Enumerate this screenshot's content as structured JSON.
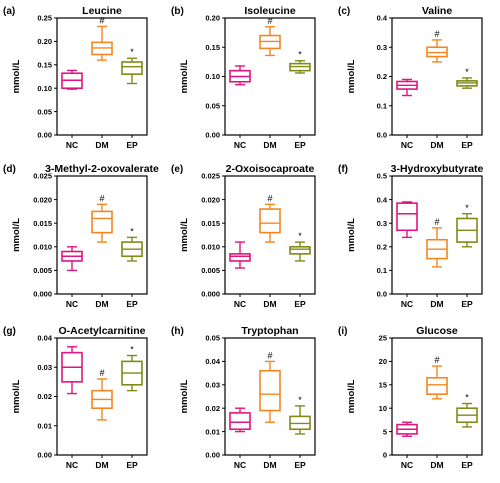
{
  "colors": {
    "NC": "#E0157E",
    "DM": "#F5861F",
    "EP": "#7E8B18"
  },
  "chart_data": [
    {
      "type": "boxplot",
      "panel_label": "(a)",
      "title": "Leucine",
      "ylabel": "mmol/L",
      "ylim": [
        0,
        0.25
      ],
      "yticks": [
        "0.00",
        "0.05",
        "0.10",
        "0.15",
        "0.20",
        "0.25"
      ],
      "categories": [
        "NC",
        "DM",
        "EP"
      ],
      "boxes": [
        {
          "min": 0.098,
          "q1": 0.1,
          "median": 0.117,
          "q3": 0.132,
          "max": 0.138,
          "mark": ""
        },
        {
          "min": 0.16,
          "q1": 0.172,
          "median": 0.186,
          "q3": 0.198,
          "max": 0.232,
          "mark": "#"
        },
        {
          "min": 0.11,
          "q1": 0.13,
          "median": 0.146,
          "q3": 0.156,
          "max": 0.164,
          "mark": "*"
        }
      ]
    },
    {
      "type": "boxplot",
      "panel_label": "(b)",
      "title": "Isoleucine",
      "ylabel": "mmol/L",
      "ylim": [
        0,
        0.2
      ],
      "yticks": [
        "0.00",
        "0.05",
        "0.10",
        "0.15",
        "0.20"
      ],
      "categories": [
        "NC",
        "DM",
        "EP"
      ],
      "boxes": [
        {
          "min": 0.086,
          "q1": 0.091,
          "median": 0.1,
          "q3": 0.11,
          "max": 0.118,
          "mark": ""
        },
        {
          "min": 0.136,
          "q1": 0.148,
          "median": 0.16,
          "q3": 0.17,
          "max": 0.185,
          "mark": "#"
        },
        {
          "min": 0.106,
          "q1": 0.11,
          "median": 0.117,
          "q3": 0.122,
          "max": 0.127,
          "mark": "*"
        }
      ]
    },
    {
      "type": "boxplot",
      "panel_label": "(c)",
      "title": "Valine",
      "ylabel": "mmol/L",
      "ylim": [
        0,
        0.4
      ],
      "yticks": [
        "0.0",
        "0.1",
        "0.2",
        "0.3",
        "0.4"
      ],
      "categories": [
        "NC",
        "DM",
        "EP"
      ],
      "boxes": [
        {
          "min": 0.135,
          "q1": 0.157,
          "median": 0.17,
          "q3": 0.183,
          "max": 0.19,
          "mark": ""
        },
        {
          "min": 0.25,
          "q1": 0.268,
          "median": 0.282,
          "q3": 0.3,
          "max": 0.325,
          "mark": "#"
        },
        {
          "min": 0.16,
          "q1": 0.168,
          "median": 0.178,
          "q3": 0.185,
          "max": 0.195,
          "mark": "*"
        }
      ]
    },
    {
      "type": "boxplot",
      "panel_label": "(d)",
      "title": "3-Methyl-2-oxovalerate",
      "ylabel": "mmol/L",
      "ylim": [
        0,
        0.025
      ],
      "yticks": [
        "0.000",
        "0.005",
        "0.010",
        "0.015",
        "0.020",
        "0.025"
      ],
      "categories": [
        "NC",
        "DM",
        "EP"
      ],
      "boxes": [
        {
          "min": 0.005,
          "q1": 0.007,
          "median": 0.008,
          "q3": 0.009,
          "max": 0.01,
          "mark": ""
        },
        {
          "min": 0.011,
          "q1": 0.013,
          "median": 0.016,
          "q3": 0.0175,
          "max": 0.019,
          "mark": "#"
        },
        {
          "min": 0.007,
          "q1": 0.008,
          "median": 0.0095,
          "q3": 0.011,
          "max": 0.012,
          "mark": "*"
        }
      ]
    },
    {
      "type": "boxplot",
      "panel_label": "(e)",
      "title": "2-Oxoisocaproate",
      "ylabel": "mmol/L",
      "ylim": [
        0,
        0.025
      ],
      "yticks": [
        "0.000",
        "0.005",
        "0.010",
        "0.015",
        "0.020",
        "0.025"
      ],
      "categories": [
        "NC",
        "DM",
        "EP"
      ],
      "boxes": [
        {
          "min": 0.0055,
          "q1": 0.007,
          "median": 0.008,
          "q3": 0.0085,
          "max": 0.011,
          "mark": ""
        },
        {
          "min": 0.011,
          "q1": 0.013,
          "median": 0.015,
          "q3": 0.018,
          "max": 0.019,
          "mark": "#"
        },
        {
          "min": 0.007,
          "q1": 0.0085,
          "median": 0.0095,
          "q3": 0.01,
          "max": 0.011,
          "mark": "*"
        }
      ]
    },
    {
      "type": "boxplot",
      "panel_label": "(f)",
      "title": "3-Hydroxybutyrate",
      "ylabel": "mmol/L",
      "ylim": [
        0,
        0.5
      ],
      "yticks": [
        "0.0",
        "0.1",
        "0.2",
        "0.3",
        "0.4",
        "0.5"
      ],
      "categories": [
        "NC",
        "DM",
        "EP"
      ],
      "boxes": [
        {
          "min": 0.24,
          "q1": 0.27,
          "median": 0.34,
          "q3": 0.385,
          "max": 0.39,
          "mark": ""
        },
        {
          "min": 0.115,
          "q1": 0.15,
          "median": 0.19,
          "q3": 0.23,
          "max": 0.28,
          "mark": "#"
        },
        {
          "min": 0.2,
          "q1": 0.22,
          "median": 0.27,
          "q3": 0.32,
          "max": 0.34,
          "mark": "*"
        }
      ]
    },
    {
      "type": "boxplot",
      "panel_label": "(g)",
      "title": "O-Acetylcarnitine",
      "ylabel": "mmol/L",
      "ylim": [
        0,
        0.04
      ],
      "yticks": [
        "0.00",
        "0.01",
        "0.02",
        "0.03",
        "0.04"
      ],
      "categories": [
        "NC",
        "DM",
        "EP"
      ],
      "boxes": [
        {
          "min": 0.021,
          "q1": 0.025,
          "median": 0.03,
          "q3": 0.035,
          "max": 0.037,
          "mark": ""
        },
        {
          "min": 0.012,
          "q1": 0.016,
          "median": 0.019,
          "q3": 0.022,
          "max": 0.026,
          "mark": "#"
        },
        {
          "min": 0.022,
          "q1": 0.024,
          "median": 0.028,
          "q3": 0.032,
          "max": 0.034,
          "mark": "*"
        }
      ]
    },
    {
      "type": "boxplot",
      "panel_label": "(h)",
      "title": "Tryptophan",
      "ylabel": "mmol/L",
      "ylim": [
        0,
        0.05
      ],
      "yticks": [
        "0.00",
        "0.01",
        "0.02",
        "0.03",
        "0.04",
        "0.05"
      ],
      "categories": [
        "NC",
        "DM",
        "EP"
      ],
      "boxes": [
        {
          "min": 0.01,
          "q1": 0.011,
          "median": 0.014,
          "q3": 0.018,
          "max": 0.02,
          "mark": ""
        },
        {
          "min": 0.014,
          "q1": 0.019,
          "median": 0.026,
          "q3": 0.036,
          "max": 0.04,
          "mark": "#"
        },
        {
          "min": 0.009,
          "q1": 0.011,
          "median": 0.0135,
          "q3": 0.0165,
          "max": 0.021,
          "mark": "*"
        }
      ]
    },
    {
      "type": "boxplot",
      "panel_label": "(i)",
      "title": "Glucose",
      "ylabel": "mmol/L",
      "ylim": [
        0,
        25
      ],
      "yticks": [
        "0",
        "5",
        "10",
        "15",
        "20",
        "25"
      ],
      "categories": [
        "NC",
        "DM",
        "EP"
      ],
      "boxes": [
        {
          "min": 4.0,
          "q1": 4.5,
          "median": 5.5,
          "q3": 6.5,
          "max": 7.0,
          "mark": ""
        },
        {
          "min": 12.0,
          "q1": 13.0,
          "median": 15.0,
          "q3": 16.5,
          "max": 19.0,
          "mark": "#"
        },
        {
          "min": 6.0,
          "q1": 7.0,
          "median": 8.5,
          "q3": 10.0,
          "max": 11.0,
          "mark": "*"
        }
      ]
    }
  ]
}
